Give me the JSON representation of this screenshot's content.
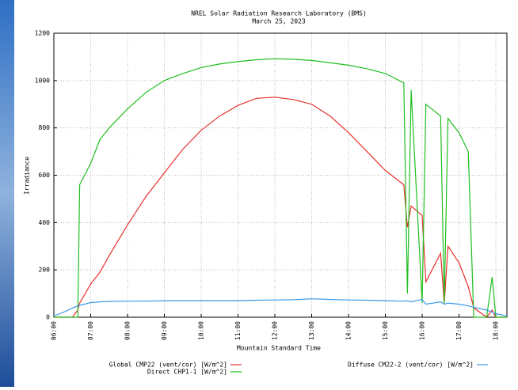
{
  "chart_data": {
    "type": "line",
    "title": "NREL Solar Radiation Research Laboratory (BMS)",
    "subtitle": "March 25, 2023",
    "x_label": "Mountain Standard Time",
    "y_label": "Irradiance",
    "x": [
      6,
      6.25,
      6.5,
      6.65,
      6.7,
      7,
      7.25,
      7.5,
      8,
      8.5,
      9,
      9.5,
      10,
      10.5,
      11,
      11.5,
      12,
      12.5,
      13,
      13.5,
      14,
      14.5,
      15,
      15.5,
      15.6,
      15.7,
      16,
      16.1,
      16.5,
      16.6,
      16.7,
      17,
      17.25,
      17.4,
      17.75,
      17.9,
      18,
      18.3
    ],
    "series": [
      {
        "name": "Global CMP22 (vent/cor) [W/m^2]",
        "color": "#e8302a",
        "values": [
          0,
          0,
          0,
          30,
          60,
          140,
          190,
          260,
          390,
          510,
          610,
          710,
          790,
          850,
          895,
          925,
          930,
          920,
          900,
          850,
          780,
          700,
          620,
          560,
          380,
          470,
          430,
          150,
          270,
          60,
          300,
          230,
          130,
          40,
          0,
          30,
          0,
          0
        ]
      },
      {
        "name": "Direct CHP1-1 [W/m^2]",
        "color": "#1fbf1f",
        "values": [
          0,
          0,
          0,
          0,
          560,
          650,
          750,
          800,
          880,
          950,
          1000,
          1030,
          1055,
          1070,
          1080,
          1088,
          1092,
          1090,
          1085,
          1075,
          1065,
          1050,
          1030,
          990,
          100,
          960,
          60,
          900,
          850,
          60,
          840,
          780,
          700,
          0,
          0,
          170,
          0,
          0
        ]
      },
      {
        "name": "Diffuse CM22-2 (vent/cor) [W/m^2]",
        "color": "#3a9ae8",
        "values": [
          5,
          20,
          38,
          48,
          50,
          62,
          65,
          67,
          68,
          68,
          70,
          70,
          70,
          70,
          70,
          72,
          73,
          74,
          78,
          75,
          73,
          72,
          70,
          68,
          70,
          65,
          75,
          55,
          65,
          55,
          60,
          55,
          48,
          42,
          30,
          22,
          15,
          5
        ]
      }
    ],
    "xlim": [
      6,
      18.3
    ],
    "xticks": [
      {
        "value": 6,
        "label": "06:00"
      },
      {
        "value": 7,
        "label": "07:00"
      },
      {
        "value": 8,
        "label": "08:00"
      },
      {
        "value": 9,
        "label": "09:00"
      },
      {
        "value": 10,
        "label": "10:00"
      },
      {
        "value": 11,
        "label": "11:00"
      },
      {
        "value": 12,
        "label": "12:00"
      },
      {
        "value": 13,
        "label": "13:00"
      },
      {
        "value": 14,
        "label": "14:00"
      },
      {
        "value": 15,
        "label": "15:00"
      },
      {
        "value": 16,
        "label": "16:00"
      },
      {
        "value": 17,
        "label": "17:00"
      },
      {
        "value": 18,
        "label": "18:00"
      }
    ],
    "ylim": [
      0,
      1200
    ],
    "yticks": [
      0,
      200,
      400,
      600,
      800,
      1000,
      1200
    ],
    "grid": true
  }
}
